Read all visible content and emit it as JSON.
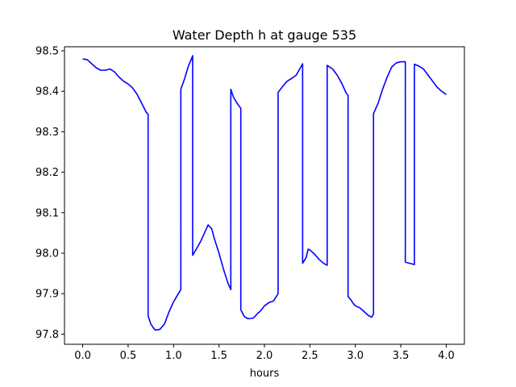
{
  "chart_data": {
    "type": "line",
    "title": "Water Depth h at gauge 535",
    "xlabel": "hours",
    "ylabel": "",
    "xlim": [
      -0.2,
      4.2
    ],
    "ylim": [
      97.775,
      98.51
    ],
    "xticks": [
      0.0,
      0.5,
      1.0,
      1.5,
      2.0,
      2.5,
      3.0,
      3.5,
      4.0
    ],
    "xtick_labels": [
      "0.0",
      "0.5",
      "1.0",
      "1.5",
      "2.0",
      "2.5",
      "3.0",
      "3.5",
      "4.0"
    ],
    "yticks": [
      97.8,
      97.9,
      98.0,
      98.1,
      98.2,
      98.3,
      98.4,
      98.5
    ],
    "ytick_labels": [
      "97.8",
      "97.9",
      "98.0",
      "98.1",
      "98.2",
      "98.3",
      "98.4",
      "98.5"
    ],
    "grid": false,
    "series": [
      {
        "color": "#0000ff",
        "x": [
          0.0,
          0.05,
          0.1,
          0.15,
          0.2,
          0.25,
          0.3,
          0.35,
          0.4,
          0.45,
          0.5,
          0.55,
          0.6,
          0.65,
          0.7,
          0.72,
          0.72,
          0.75,
          0.78,
          0.8,
          0.85,
          0.9,
          0.95,
          1.0,
          1.08,
          1.08,
          1.12,
          1.16,
          1.2,
          1.21,
          1.21,
          1.25,
          1.3,
          1.35,
          1.38,
          1.42,
          1.45,
          1.5,
          1.55,
          1.6,
          1.63,
          1.63,
          1.66,
          1.7,
          1.74,
          1.74,
          1.78,
          1.82,
          1.88,
          1.92,
          1.96,
          2.0,
          2.05,
          2.1,
          2.15,
          2.15,
          2.2,
          2.25,
          2.3,
          2.35,
          2.38,
          2.42,
          2.42,
          2.46,
          2.48,
          2.5,
          2.55,
          2.6,
          2.65,
          2.69,
          2.69,
          2.75,
          2.8,
          2.85,
          2.9,
          2.92,
          2.92,
          2.95,
          2.98,
          3.0,
          3.05,
          3.1,
          3.15,
          3.18,
          3.2,
          3.2,
          3.25,
          3.3,
          3.35,
          3.4,
          3.45,
          3.5,
          3.55,
          3.55,
          3.6,
          3.65,
          3.65,
          3.7,
          3.75,
          3.8,
          3.85,
          3.9,
          3.95,
          4.0
        ],
        "y": [
          98.48,
          98.478,
          98.468,
          98.458,
          98.452,
          98.452,
          98.455,
          98.448,
          98.435,
          98.425,
          98.418,
          98.408,
          98.392,
          98.37,
          98.348,
          98.343,
          97.845,
          97.825,
          97.815,
          97.81,
          97.812,
          97.825,
          97.855,
          97.88,
          97.91,
          98.405,
          98.43,
          98.46,
          98.482,
          98.488,
          97.995,
          98.01,
          98.03,
          98.055,
          98.07,
          98.06,
          98.035,
          98.0,
          97.96,
          97.925,
          97.91,
          98.405,
          98.385,
          98.37,
          98.358,
          97.86,
          97.843,
          97.838,
          97.84,
          97.85,
          97.858,
          97.87,
          97.878,
          97.882,
          97.9,
          98.397,
          98.412,
          98.425,
          98.432,
          98.44,
          98.452,
          98.468,
          97.975,
          97.99,
          98.01,
          98.008,
          97.998,
          97.985,
          97.975,
          97.97,
          98.464,
          98.455,
          98.44,
          98.42,
          98.395,
          98.39,
          97.893,
          97.885,
          97.875,
          97.87,
          97.865,
          97.855,
          97.845,
          97.842,
          97.85,
          98.345,
          98.37,
          98.405,
          98.435,
          98.46,
          98.47,
          98.473,
          98.473,
          97.978,
          97.975,
          97.972,
          98.467,
          98.462,
          98.455,
          98.44,
          98.425,
          98.41,
          98.4,
          98.392
        ]
      }
    ]
  }
}
